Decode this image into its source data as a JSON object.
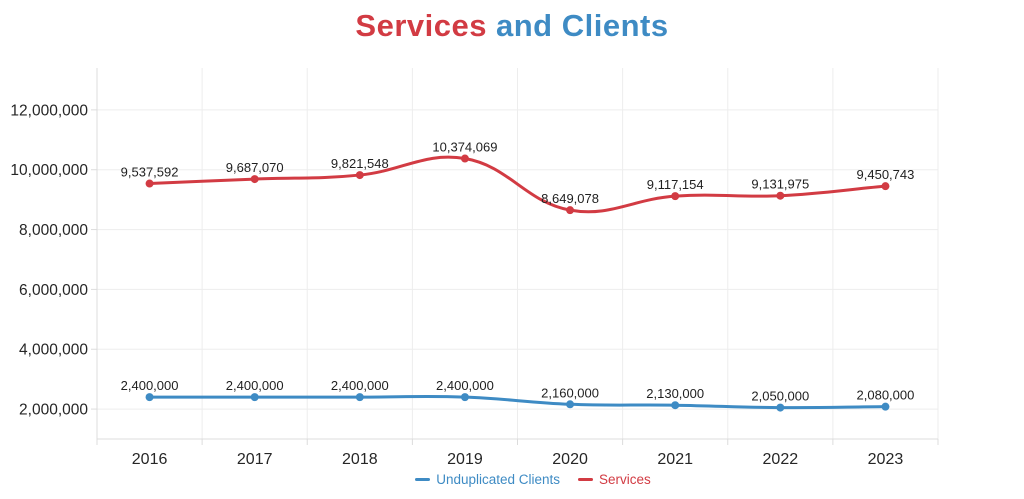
{
  "title": {
    "part1": "Services",
    "part2": "and Clients"
  },
  "chart_data": {
    "type": "line",
    "title": "Services and Clients",
    "x": [
      "2016",
      "2017",
      "2018",
      "2019",
      "2020",
      "2021",
      "2022",
      "2023"
    ],
    "series": [
      {
        "name": "Unduplicated Clients",
        "color": "#3e8bc4",
        "values": [
          2400000,
          2400000,
          2400000,
          2400000,
          2160000,
          2130000,
          2050000,
          2080000
        ],
        "labels": [
          "2,400,000",
          "2,400,000",
          "2,400,000",
          "2,400,000",
          "2,160,000",
          "2,130,000",
          "2,050,000",
          "2,080,000"
        ]
      },
      {
        "name": "Services",
        "color": "#d23b43",
        "values": [
          9537592,
          9687070,
          9821548,
          10374069,
          8649078,
          9117154,
          9131975,
          9450743
        ],
        "labels": [
          "9,537,592",
          "9,687,070",
          "9,821,548",
          "10,374,069",
          "8,649,078",
          "9,117,154",
          "9,131,975",
          "9,450,743"
        ]
      }
    ],
    "ylim": [
      1000000,
      13400000
    ],
    "yticks": [
      2000000,
      4000000,
      6000000,
      8000000,
      10000000,
      12000000
    ],
    "ytick_labels": [
      "2,000,000",
      "4,000,000",
      "6,000,000",
      "8,000,000",
      "10,000,000",
      "12,000,000"
    ],
    "grid": true,
    "legend_position": "bottom",
    "point_style": "circle",
    "line_smoothing": 0.4
  },
  "colors": {
    "grid": "#ededed",
    "axis": "#dcdcdc",
    "tick_text": "#262626",
    "label_text": "#1f1f1f",
    "background": "#ffffff"
  },
  "legend": {
    "items": [
      {
        "label": "Unduplicated Clients",
        "color": "#3e8bc4"
      },
      {
        "label": "Services",
        "color": "#d23b43"
      }
    ]
  }
}
